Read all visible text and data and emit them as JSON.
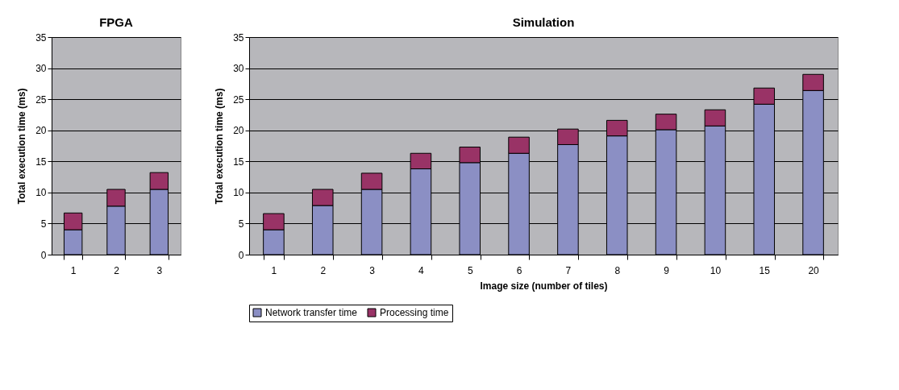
{
  "chart_data": [
    {
      "type": "bar",
      "title": "FPGA",
      "ylabel": "Total execution time (ms)",
      "categories": [
        "1",
        "2",
        "3"
      ],
      "stacked": true,
      "series": [
        {
          "color": "#8b8fc4",
          "values": [
            4.0,
            7.8,
            10.5
          ]
        },
        {
          "color": "#993366",
          "values": [
            2.7,
            2.7,
            2.7
          ]
        }
      ],
      "ylim": [
        0,
        35
      ],
      "yticks": [
        0,
        5,
        10,
        15,
        20,
        25,
        30,
        35
      ],
      "grid": "y",
      "legend": false
    },
    {
      "type": "bar",
      "title": "Simulation",
      "xlabel": "Image size (number of tiles)",
      "ylabel": "Total execution time (ms)",
      "categories": [
        "1",
        "2",
        "3",
        "4",
        "5",
        "6",
        "7",
        "8",
        "9",
        "10",
        "15",
        "20"
      ],
      "stacked": true,
      "series": [
        {
          "name": "Network transfer time",
          "color": "#8b8fc4",
          "values": [
            4.0,
            7.9,
            10.5,
            13.8,
            14.8,
            16.3,
            17.7,
            19.1,
            20.1,
            20.7,
            24.2,
            26.4
          ]
        },
        {
          "name": "Processing time",
          "color": "#993366",
          "values": [
            2.6,
            2.6,
            2.6,
            2.5,
            2.5,
            2.6,
            2.5,
            2.5,
            2.5,
            2.6,
            2.6,
            2.6
          ]
        }
      ],
      "ylim": [
        0,
        35
      ],
      "yticks": [
        0,
        5,
        10,
        15,
        20,
        25,
        30,
        35
      ],
      "grid": "y",
      "legend": "bottom"
    }
  ]
}
